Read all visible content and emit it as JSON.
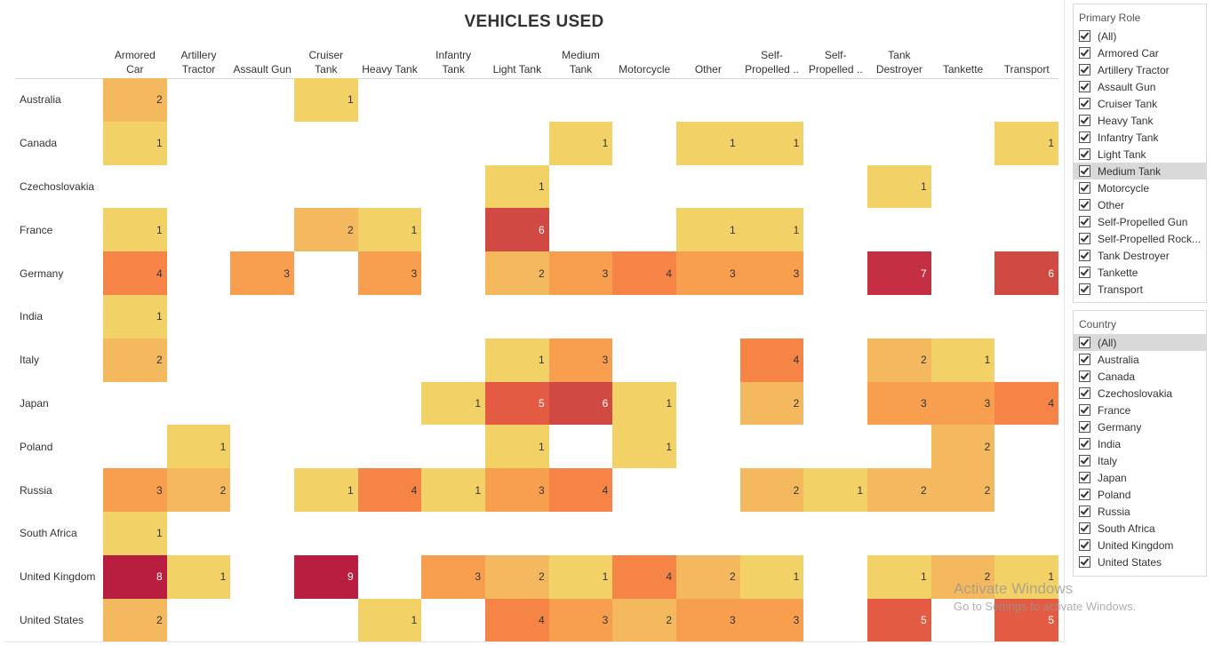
{
  "colors": {
    "scale": [
      "#f2d166",
      "#f4b95e",
      "#f79e4f",
      "#f58446",
      "#e35b43",
      "#d04942",
      "#c42f43",
      "#b91d3f"
    ]
  },
  "filters": {
    "primary_role": {
      "title": "Primary Role",
      "items": [
        "(All)",
        "Armored Car",
        "Artillery Tractor",
        "Assault Gun",
        "Cruiser Tank",
        "Heavy Tank",
        "Infantry Tank",
        "Light Tank",
        "Medium Tank",
        "Motorcycle",
        "Other",
        "Self-Propelled Gun",
        "Self-Propelled Rock...",
        "Tank Destroyer",
        "Tankette",
        "Transport"
      ],
      "highlighted": "Medium Tank"
    },
    "country": {
      "title": "Country",
      "items": [
        "(All)",
        "Australia",
        "Canada",
        "Czechoslovakia",
        "France",
        "Germany",
        "India",
        "Italy",
        "Japan",
        "Poland",
        "Russia",
        "South Africa",
        "United Kingdom",
        "United States"
      ],
      "highlighted": "(All)"
    }
  },
  "watermark": {
    "line1": "Activate Windows",
    "line2": "Go to Settings to activate Windows."
  },
  "chart_data": {
    "type": "heatmap",
    "title": "VEHICLES USED",
    "columns": [
      [
        "Armored",
        "Car"
      ],
      [
        "Artillery",
        "Tractor"
      ],
      [
        "Assault Gun"
      ],
      [
        "Cruiser",
        "Tank"
      ],
      [
        "Heavy Tank"
      ],
      [
        "Infantry",
        "Tank"
      ],
      [
        "Light Tank"
      ],
      [
        "Medium",
        "Tank"
      ],
      [
        "Motorcycle"
      ],
      [
        "Other"
      ],
      [
        "Self-",
        "Propelled .."
      ],
      [
        "Self-",
        "Propelled .."
      ],
      [
        "Tank",
        "Destroyer"
      ],
      [
        "Tankette"
      ],
      [
        "Transport"
      ]
    ],
    "rows": [
      "Australia",
      "Canada",
      "Czechoslovakia",
      "France",
      "Germany",
      "India",
      "Italy",
      "Japan",
      "Poland",
      "Russia",
      "South Africa",
      "United Kingdom",
      "United States"
    ],
    "values": [
      [
        2,
        null,
        null,
        1,
        null,
        null,
        null,
        null,
        null,
        null,
        null,
        null,
        null,
        null,
        null
      ],
      [
        1,
        null,
        null,
        null,
        null,
        null,
        null,
        1,
        null,
        1,
        1,
        null,
        null,
        null,
        1
      ],
      [
        null,
        null,
        null,
        null,
        null,
        null,
        1,
        null,
        null,
        null,
        null,
        null,
        1,
        null,
        null
      ],
      [
        1,
        null,
        null,
        2,
        1,
        null,
        6,
        null,
        null,
        1,
        1,
        null,
        null,
        null,
        null
      ],
      [
        4,
        null,
        3,
        null,
        3,
        null,
        2,
        3,
        4,
        3,
        3,
        null,
        7,
        null,
        6
      ],
      [
        1,
        null,
        null,
        null,
        null,
        null,
        null,
        null,
        null,
        null,
        null,
        null,
        null,
        null,
        null
      ],
      [
        2,
        null,
        null,
        null,
        null,
        null,
        1,
        3,
        null,
        null,
        4,
        null,
        2,
        1,
        null
      ],
      [
        null,
        null,
        null,
        null,
        null,
        1,
        5,
        6,
        1,
        null,
        2,
        null,
        3,
        3,
        4
      ],
      [
        null,
        1,
        null,
        null,
        null,
        null,
        1,
        null,
        1,
        null,
        null,
        null,
        null,
        2,
        null
      ],
      [
        3,
        2,
        null,
        1,
        4,
        1,
        3,
        4,
        null,
        null,
        2,
        1,
        2,
        2,
        null
      ],
      [
        1,
        null,
        null,
        null,
        null,
        null,
        null,
        null,
        null,
        null,
        null,
        null,
        null,
        null,
        null
      ],
      [
        8,
        1,
        null,
        9,
        null,
        3,
        2,
        1,
        4,
        2,
        1,
        null,
        1,
        2,
        1
      ],
      [
        2,
        null,
        null,
        null,
        1,
        null,
        4,
        3,
        2,
        3,
        3,
        null,
        5,
        null,
        5
      ]
    ]
  }
}
